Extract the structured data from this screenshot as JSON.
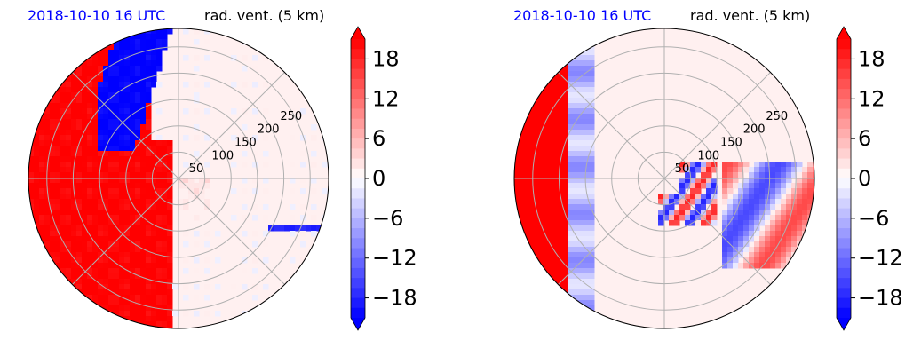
{
  "chart_data": [
    {
      "type": "polar-heatmap",
      "title_left": "2018-10-10 16 UTC",
      "title_right": "rad. vent. (5 km)",
      "range_rings": [
        50,
        100,
        150,
        200,
        250
      ],
      "colorbar": {
        "ticks": [
          "18",
          "12",
          "6",
          "0",
          "−6",
          "−12",
          "−18"
        ],
        "min": -21,
        "max": 21,
        "extend": "both",
        "colormap": "bwr"
      },
      "pattern": "strong positive (outbound) velocity across western half, negative band to north-west"
    },
    {
      "type": "polar-heatmap",
      "title_left": "2018-10-10 16 UTC",
      "title_right": "rad. vent. (5 km)",
      "range_rings": [
        50,
        100,
        150,
        200,
        250
      ],
      "colorbar": {
        "ticks": [
          "18",
          "12",
          "6",
          "0",
          "−6",
          "−12",
          "−18"
        ],
        "min": -21,
        "max": 21,
        "extend": "both",
        "colormap": "bwr"
      },
      "pattern": "positive band along western edge, scattered cells, negative patches to east"
    }
  ],
  "colors": {
    "positive": "#ff0000",
    "negative": "#0000ff",
    "neutral": "#fff0f0",
    "grid": "#b0b0b0",
    "title_accent": "#0000ff"
  }
}
